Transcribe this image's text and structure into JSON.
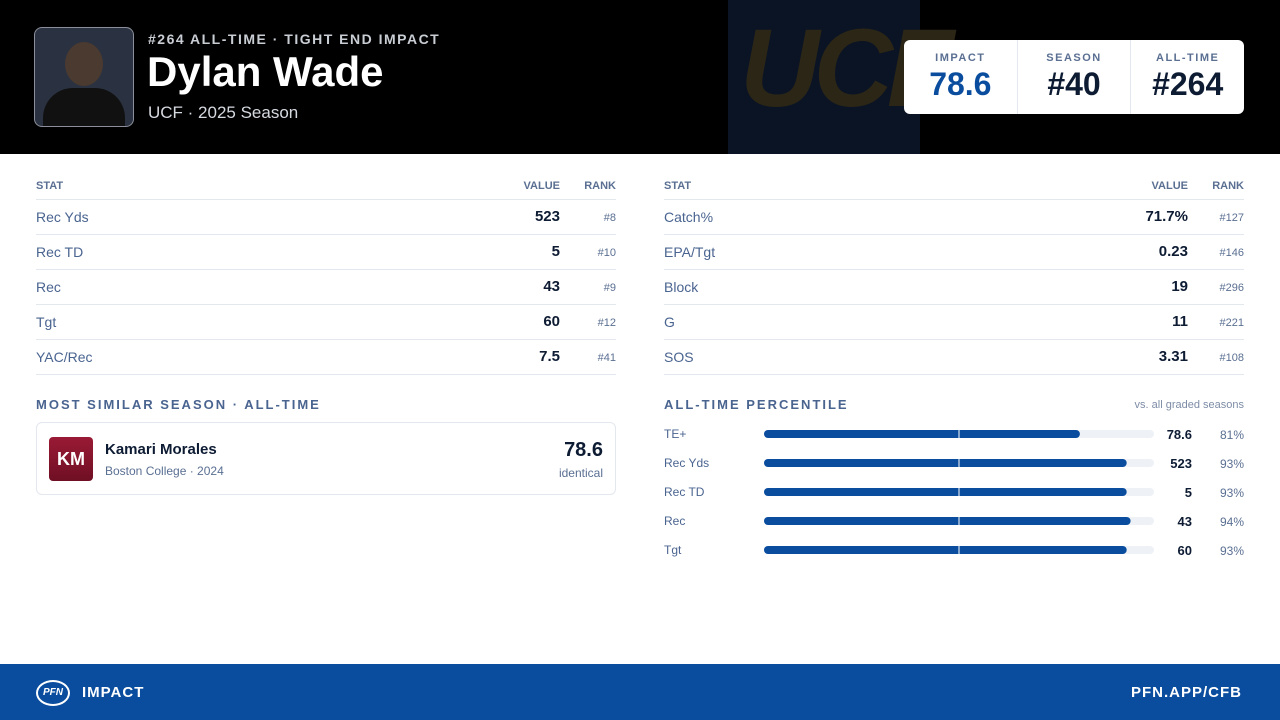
{
  "header": {
    "kicker": "#264 ALL-TIME · TIGHT END IMPACT",
    "name": "Dylan Wade",
    "subtitle": "UCF · 2025 Season",
    "watermark": "UCF",
    "badges": [
      {
        "label": "IMPACT",
        "value": "78.6"
      },
      {
        "label": "SEASON",
        "value": "#40"
      },
      {
        "label": "ALL-TIME",
        "value": "#264"
      }
    ]
  },
  "stat_tables": [
    {
      "columns": [
        "STAT",
        "VALUE",
        "RANK"
      ],
      "rows": [
        [
          "Rec Yds",
          "523",
          "#8"
        ],
        [
          "Rec TD",
          "5",
          "#10"
        ],
        [
          "Rec",
          "43",
          "#9"
        ],
        [
          "Tgt",
          "60",
          "#12"
        ],
        [
          "YAC/Rec",
          "7.5",
          "#41"
        ]
      ]
    },
    {
      "columns": [
        "STAT",
        "VALUE",
        "RANK"
      ],
      "rows": [
        [
          "Catch%",
          "71.7%",
          "#127"
        ],
        [
          "EPA/Tgt",
          "0.23",
          "#146"
        ],
        [
          "Block",
          "19",
          "#296"
        ],
        [
          "G",
          "11",
          "#221"
        ],
        [
          "SOS",
          "3.31",
          "#108"
        ]
      ]
    }
  ],
  "similar": {
    "title": "MOST SIMILAR SEASON · ALL-TIME",
    "initials": "KM",
    "name": "Kamari Morales",
    "detail": "Boston College · 2024",
    "score": "78.6",
    "note": "identical"
  },
  "percentile": {
    "title": "ALL-TIME PERCENTILE",
    "note": "vs. all graded seasons",
    "rows": [
      {
        "label": "TE+",
        "value": "78.6",
        "percentile": 81,
        "percentile_label": "81%"
      },
      {
        "label": "Rec Yds",
        "value": "523",
        "percentile": 93,
        "percentile_label": "93%"
      },
      {
        "label": "Rec TD",
        "value": "5",
        "percentile": 93,
        "percentile_label": "93%"
      },
      {
        "label": "Rec",
        "value": "43",
        "percentile": 94,
        "percentile_label": "94%"
      },
      {
        "label": "Tgt",
        "value": "60",
        "percentile": 93,
        "percentile_label": "93%"
      }
    ]
  },
  "footer": {
    "logo": "PFN",
    "brand": "IMPACT",
    "url": "PFN.APP/CFB"
  }
}
